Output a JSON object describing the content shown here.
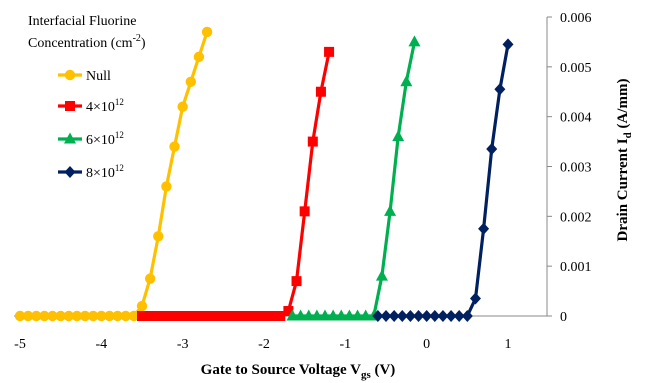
{
  "chart_data": {
    "type": "line",
    "xlabel": "Gate to Source Voltage V",
    "xlabel_sub": "gs",
    "xlabel_unit": " (V)",
    "ylabel": "Drain Current I",
    "ylabel_sub": "d",
    "ylabel_unit": " (A/mm)",
    "xlim": [
      -5,
      1
    ],
    "ylim": [
      0,
      0.006
    ],
    "xticks": [
      "-5",
      "-4",
      "-3",
      "-2",
      "-1",
      "0",
      "1"
    ],
    "yticks": [
      "0",
      "0.001",
      "0.002",
      "0.003",
      "0.004",
      "0.005",
      "0.006"
    ],
    "legend_title": "Interfacial Fluorine",
    "legend_title2": "Concentration (cm",
    "legend_title_sup": "-2",
    "legend_title_end": ")",
    "legend_placement": "top-left",
    "series": [
      {
        "name": "Null",
        "color": "#FFC000",
        "marker": "circle",
        "x": [
          -5.0,
          -4.9,
          -4.8,
          -4.7,
          -4.6,
          -4.5,
          -4.4,
          -4.3,
          -4.2,
          -4.1,
          -4.0,
          -3.9,
          -3.8,
          -3.7,
          -3.6,
          -3.5,
          -3.4,
          -3.3,
          -3.2,
          -3.1,
          -3.0,
          -2.9,
          -2.8,
          -2.7
        ],
        "y": [
          0,
          0,
          0,
          0,
          0,
          0,
          0,
          0,
          0,
          0,
          0,
          0,
          0,
          0,
          0,
          0.0002,
          0.00075,
          0.0016,
          0.0026,
          0.0034,
          0.0042,
          0.0047,
          0.0052,
          0.0057
        ]
      },
      {
        "name": "4×10",
        "name_sup": "12",
        "color": "#FF0000",
        "marker": "square",
        "x": [
          -3.5,
          -3.4,
          -3.3,
          -3.2,
          -3.1,
          -3.0,
          -2.9,
          -2.8,
          -2.7,
          -2.6,
          -2.5,
          -2.4,
          -2.3,
          -2.2,
          -2.1,
          -2.0,
          -1.9,
          -1.8,
          -1.7,
          -1.6,
          -1.5,
          -1.4,
          -1.3,
          -1.2
        ],
        "y": [
          0,
          0,
          0,
          0,
          0,
          0,
          0,
          0,
          0,
          0,
          0,
          0,
          0,
          0,
          0,
          0,
          0,
          0,
          0.0001,
          0.0007,
          0.0021,
          0.0035,
          0.0045,
          0.0053
        ]
      },
      {
        "name": "6×10",
        "name_sup": "12",
        "color": "#00B050",
        "marker": "triangle",
        "x": [
          -1.65,
          -1.55,
          -1.45,
          -1.35,
          -1.25,
          -1.15,
          -1.05,
          -0.95,
          -0.85,
          -0.75,
          -0.65,
          -0.55,
          -0.45,
          -0.35,
          -0.25,
          -0.15
        ],
        "y": [
          0,
          0,
          0,
          0,
          0,
          0,
          0,
          0,
          0,
          0,
          0,
          0.0008,
          0.0021,
          0.0036,
          0.0047,
          0.0055
        ]
      },
      {
        "name": "8×10",
        "name_sup": "12",
        "color": "#002060",
        "marker": "diamond",
        "x": [
          -0.6,
          -0.5,
          -0.4,
          -0.3,
          -0.2,
          -0.1,
          0.0,
          0.1,
          0.2,
          0.3,
          0.4,
          0.5,
          0.6,
          0.7,
          0.8,
          0.9,
          1.0
        ],
        "y": [
          0,
          0,
          0,
          0,
          0,
          0,
          0,
          0,
          0,
          0,
          0,
          0,
          0.00035,
          0.00175,
          0.00335,
          0.00455,
          0.00545
        ]
      }
    ]
  }
}
